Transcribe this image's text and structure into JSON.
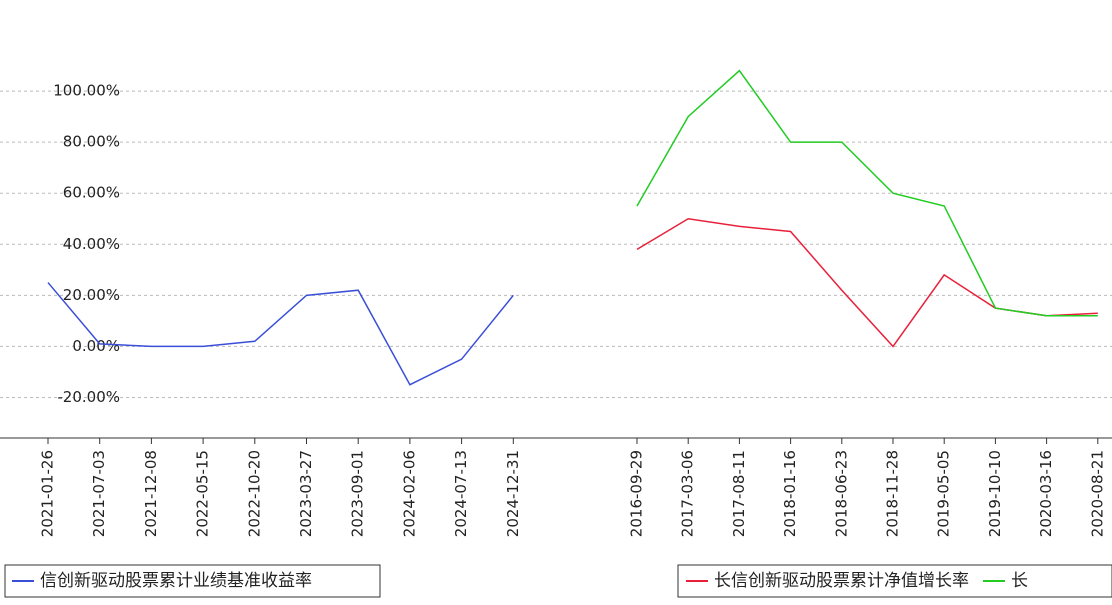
{
  "chart_data": [
    {
      "type": "line",
      "categories": [
        "2021-01-26",
        "2021-07-03",
        "2021-12-08",
        "2022-05-15",
        "2022-10-20",
        "2023-03-27",
        "2023-09-01",
        "2024-02-06",
        "2024-07-13",
        "2024-12-31"
      ],
      "series": [
        {
          "name": "信创新驱动股票累计业绩基准收益率",
          "color": "#3a4fd8",
          "values": [
            25,
            1,
            0,
            0,
            2,
            20,
            22,
            -15,
            -5,
            20
          ]
        }
      ],
      "ylim": [
        -30,
        120
      ],
      "yticks": [
        {
          "value": -20,
          "label": "-20.00%"
        },
        {
          "value": 0,
          "label": "0.00%"
        },
        {
          "value": 20,
          "label": "20.00%"
        },
        {
          "value": 40,
          "label": "40.00%"
        },
        {
          "value": 60,
          "label": "60.00%"
        },
        {
          "value": 80,
          "label": "80.00%"
        },
        {
          "value": 100,
          "label": "100.00%"
        }
      ],
      "grid": true
    },
    {
      "type": "line",
      "categories": [
        "2016-09-29",
        "2017-03-06",
        "2017-08-11",
        "2018-01-16",
        "2018-06-23",
        "2018-11-28",
        "2019-05-05",
        "2019-10-10",
        "2020-03-16",
        "2020-08-21"
      ],
      "series": [
        {
          "name": "长信创新驱动股票累计净值增长率",
          "color": "#e8203a",
          "values": [
            38,
            50,
            47,
            45,
            22,
            0,
            28,
            15,
            12,
            13
          ]
        },
        {
          "name": "长",
          "color": "#22cc22",
          "values": [
            55,
            90,
            108,
            80,
            80,
            60,
            55,
            15,
            12,
            12
          ]
        }
      ],
      "ylim": [
        -30,
        120
      ]
    }
  ]
}
